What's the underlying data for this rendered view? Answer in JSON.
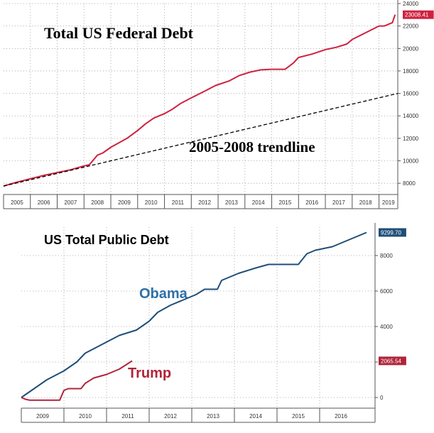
{
  "chart_data": [
    {
      "type": "line",
      "title": "Total US Federal Debt",
      "annotation": "2005-2008 trendline",
      "xlim": [
        2005,
        2019.7
      ],
      "ylim": [
        7000,
        24000
      ],
      "x_ticks": [
        "2005",
        "2006",
        "2007",
        "2008",
        "2009",
        "2010",
        "2011",
        "2012",
        "2013",
        "2014",
        "2015",
        "2016",
        "2017",
        "2018",
        "2019"
      ],
      "y_ticks": [
        8000,
        10000,
        12000,
        14000,
        16000,
        18000,
        20000,
        22000,
        24000
      ],
      "grid": true,
      "last_value_label": "23008.41",
      "colors": {
        "debt": "#d0213f",
        "trend": "#000000"
      },
      "series": [
        {
          "key": "debt",
          "style": "solid",
          "x": [
            2005.0,
            2005.5,
            2006.0,
            2006.5,
            2007.0,
            2007.5,
            2008.0,
            2008.2,
            2008.5,
            2008.7,
            2009.0,
            2009.3,
            2009.6,
            2010.0,
            2010.3,
            2010.6,
            2011.0,
            2011.3,
            2011.6,
            2012.0,
            2012.5,
            2012.9,
            2013.4,
            2013.8,
            2014.2,
            2014.6,
            2015.0,
            2015.5,
            2015.8,
            2016.0,
            2016.5,
            2017.0,
            2017.4,
            2017.8,
            2018.0,
            2018.5,
            2019.0,
            2019.2,
            2019.5,
            2019.6
          ],
          "y": [
            7750,
            8100,
            8400,
            8700,
            8950,
            9200,
            9550,
            9650,
            10500,
            10700,
            11200,
            11600,
            12000,
            12700,
            13300,
            13800,
            14200,
            14600,
            15100,
            15600,
            16200,
            16700,
            17100,
            17600,
            17900,
            18100,
            18150,
            18150,
            18700,
            19200,
            19500,
            19900,
            20100,
            20400,
            20800,
            21400,
            22000,
            22000,
            22300,
            23008
          ]
        },
        {
          "key": "trend",
          "style": "dashed",
          "x": [
            2005.0,
            2019.7
          ],
          "y": [
            7750,
            16000
          ]
        }
      ]
    },
    {
      "type": "line",
      "title": "US Total Public Debt",
      "xlim": [
        0,
        8.3
      ],
      "ylim": [
        -600,
        9600
      ],
      "x_ticks": [
        "2009",
        "2010",
        "2011",
        "2012",
        "2013",
        "2014",
        "2015",
        "2016"
      ],
      "y_ticks": [
        0,
        2000,
        4000,
        6000,
        8000
      ],
      "grid": true,
      "colors": {
        "obama": "#1f4e79",
        "trump": "#b0243a"
      },
      "series": [
        {
          "key": "obama",
          "name": "Obama",
          "value_label": "9299.70",
          "x": [
            0.0,
            0.3,
            0.6,
            1.0,
            1.3,
            1.5,
            1.9,
            2.3,
            2.7,
            3.0,
            3.2,
            3.5,
            3.8,
            4.1,
            4.3,
            4.6,
            4.7,
            4.9,
            5.1,
            5.5,
            5.8,
            6.0,
            6.5,
            6.7,
            6.9,
            7.3,
            7.6,
            7.8,
            8.0,
            8.1
          ],
          "y": [
            0,
            500,
            1000,
            1500,
            2000,
            2500,
            3000,
            3500,
            3800,
            4300,
            4800,
            5200,
            5500,
            5800,
            6100,
            6100,
            6600,
            6800,
            7000,
            7300,
            7500,
            7500,
            7500,
            8100,
            8300,
            8500,
            8800,
            9000,
            9200,
            9300
          ]
        },
        {
          "key": "trump",
          "name": "Trump",
          "value_label": "2065.54",
          "x": [
            0.0,
            0.1,
            0.2,
            0.5,
            0.9,
            1.0,
            1.1,
            1.4,
            1.5,
            1.7,
            2.0,
            2.3,
            2.6
          ],
          "y": [
            0,
            -100,
            -150,
            -150,
            -150,
            400,
            500,
            500,
            800,
            1100,
            1300,
            1600,
            2065
          ]
        }
      ]
    }
  ]
}
